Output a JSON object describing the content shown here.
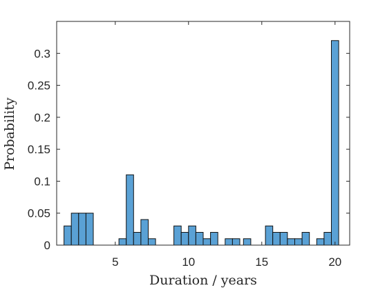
{
  "chart_data": {
    "type": "bar",
    "title": "",
    "xlabel": "Duration / years",
    "ylabel": "Probability",
    "xlim": [
      1,
      21
    ],
    "ylim": [
      0,
      0.35
    ],
    "x_ticks": [
      5,
      10,
      15,
      20
    ],
    "x_tick_labels": [
      "5",
      "10",
      "15",
      "20"
    ],
    "y_ticks": [
      0,
      0.05,
      0.1,
      0.15,
      0.2,
      0.25,
      0.3
    ],
    "y_tick_labels": [
      "0",
      "0.05",
      "0.1",
      "0.15",
      "0.2",
      "0.25",
      "0.3"
    ],
    "grid": false,
    "bin_width": 0.5,
    "bin_starts": [
      1.5,
      2.0,
      2.5,
      3.0,
      5.25,
      5.75,
      6.25,
      6.75,
      7.25,
      9.0,
      9.5,
      10.0,
      10.5,
      11.0,
      11.5,
      12.5,
      13.0,
      13.75,
      15.25,
      15.75,
      16.25,
      16.75,
      17.25,
      17.75,
      18.75,
      19.25,
      19.75
    ],
    "values": [
      0.03,
      0.05,
      0.05,
      0.05,
      0.01,
      0.11,
      0.02,
      0.04,
      0.01,
      0.03,
      0.02,
      0.03,
      0.02,
      0.01,
      0.02,
      0.01,
      0.01,
      0.01,
      0.03,
      0.02,
      0.02,
      0.01,
      0.01,
      0.02,
      0.01,
      0.02,
      0.32
    ],
    "bar_color": "#5aa1d5",
    "edge_color": "#111111"
  }
}
